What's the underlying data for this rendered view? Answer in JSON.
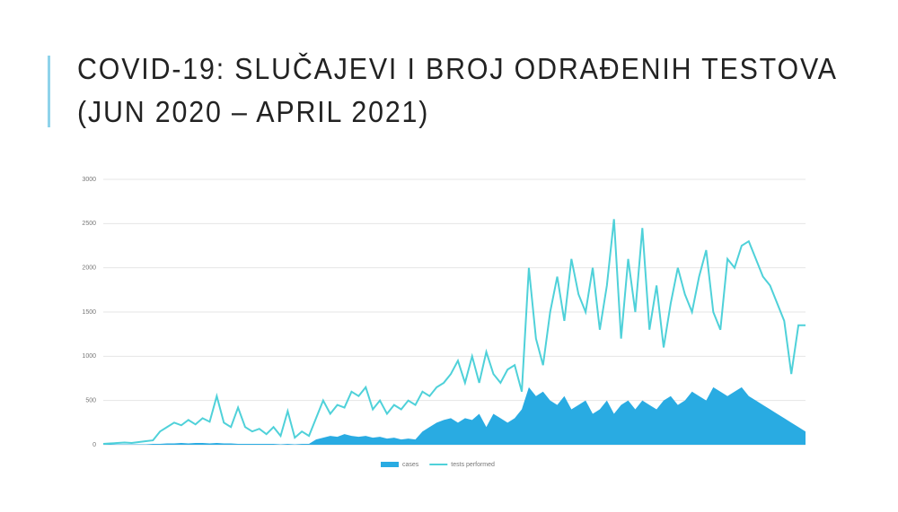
{
  "chart_data": {
    "type": "line",
    "title": [
      "COVID-19: SLUČAJEVI I BROJ ODRAĐENIH TESTOVA",
      "(JUN 2020 – APRIL 2021)"
    ],
    "ylim": [
      0,
      3000
    ],
    "yticks": [
      0,
      500,
      1000,
      1500,
      2000,
      2500,
      3000
    ],
    "grid": true,
    "legend": "bottom",
    "series": [
      {
        "name": "cases",
        "color": "#29abe2",
        "kind": "area",
        "values": [
          5,
          5,
          5,
          5,
          5,
          5,
          5,
          10,
          10,
          15,
          15,
          20,
          15,
          20,
          20,
          15,
          20,
          15,
          15,
          10,
          10,
          10,
          10,
          10,
          10,
          5,
          10,
          5,
          10,
          10,
          60,
          80,
          100,
          90,
          120,
          100,
          90,
          100,
          80,
          90,
          70,
          80,
          60,
          70,
          60,
          150,
          200,
          250,
          280,
          300,
          250,
          300,
          280,
          350,
          200,
          350,
          300,
          250,
          300,
          400,
          650,
          550,
          600,
          500,
          450,
          550,
          400,
          450,
          500,
          350,
          400,
          500,
          350,
          450,
          500,
          400,
          500,
          450,
          400,
          500,
          550,
          450,
          500,
          600,
          550,
          500,
          650,
          600,
          550,
          600,
          650,
          550,
          500,
          450,
          400,
          350,
          300,
          250,
          200,
          150
        ]
      },
      {
        "name": "tests performed",
        "color": "#4fd1d9",
        "kind": "line",
        "values": [
          10,
          15,
          20,
          25,
          20,
          30,
          40,
          50,
          150,
          200,
          250,
          220,
          280,
          230,
          300,
          260,
          550,
          250,
          200,
          420,
          200,
          150,
          180,
          120,
          200,
          100,
          380,
          80,
          150,
          100,
          300,
          500,
          350,
          450,
          420,
          600,
          550,
          650,
          400,
          500,
          350,
          450,
          400,
          500,
          450,
          600,
          550,
          650,
          700,
          800,
          950,
          700,
          1000,
          700,
          1050,
          800,
          700,
          850,
          900,
          600,
          2000,
          1200,
          900,
          1500,
          1900,
          1400,
          2100,
          1700,
          1500,
          2000,
          1300,
          1800,
          2550,
          1200,
          2100,
          1500,
          2450,
          1300,
          1800,
          1100,
          1600,
          2000,
          1700,
          1500,
          1900,
          2200,
          1500,
          1300,
          2100,
          2000,
          2250,
          2300,
          2100,
          1900,
          1800,
          1600,
          1400,
          800,
          1350,
          1350
        ]
      }
    ]
  }
}
